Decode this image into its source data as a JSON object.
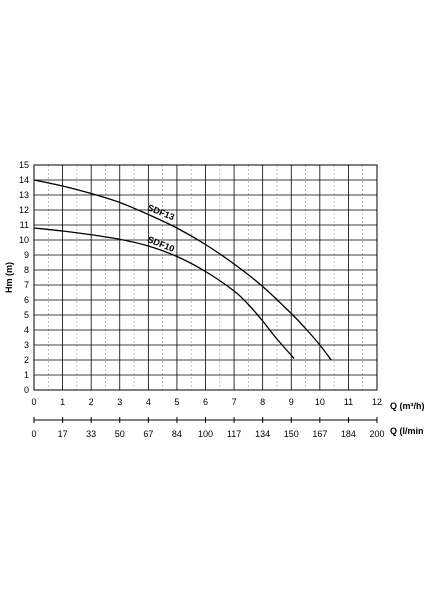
{
  "chart_data": {
    "type": "line",
    "ylabel": "Hm (m)",
    "xlabel": "Q (m³/h)",
    "secondary_xlabel": "Q (l/min)",
    "xlim": [
      0,
      12
    ],
    "ylim": [
      0,
      15
    ],
    "x_ticks": [
      "0",
      "1",
      "2",
      "3",
      "4",
      "5",
      "6",
      "7",
      "8",
      "9",
      "10",
      "11",
      "12"
    ],
    "y_ticks": [
      "0",
      "1",
      "2",
      "3",
      "4",
      "5",
      "6",
      "7",
      "8",
      "9",
      "10",
      "11",
      "12",
      "13",
      "14",
      "15"
    ],
    "secondary_x_ticks": [
      "0",
      "17",
      "33",
      "50",
      "67",
      "84",
      "100",
      "117",
      "134",
      "150",
      "167",
      "184",
      "200"
    ],
    "grid": true,
    "series": [
      {
        "name": "SDF13",
        "x": [
          0,
          1,
          2,
          3,
          4,
          5,
          6,
          7,
          8,
          9,
          9.5,
          10,
          10.4
        ],
        "y": [
          14,
          13.6,
          13.1,
          12.5,
          11.7,
          10.8,
          9.7,
          8.4,
          6.9,
          5.1,
          4.1,
          3.0,
          2.0
        ]
      },
      {
        "name": "SDF10",
        "x": [
          0,
          1,
          2,
          3,
          4,
          5,
          6,
          7,
          7.5,
          8,
          8.5,
          9.1
        ],
        "y": [
          10.8,
          10.6,
          10.35,
          10.05,
          9.6,
          8.9,
          7.9,
          6.6,
          5.7,
          4.6,
          3.4,
          2.1
        ]
      }
    ]
  }
}
